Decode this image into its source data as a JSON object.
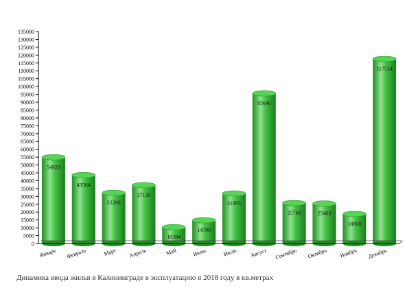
{
  "caption": "Динамика ввода жилья в Калининграде в эксплуатацию в 2018 году в кв.метрах",
  "chart_data": {
    "type": "bar",
    "title": "",
    "xlabel": "",
    "ylabel": "",
    "categories": [
      "Январь",
      "Февраль",
      "Март",
      "Апрель",
      "Май",
      "Июнь",
      "Июль",
      "Август",
      "Сентябрь",
      "Октябрь",
      "Ноябрь",
      "Декабрь"
    ],
    "values": [
      54928,
      43564,
      32260,
      37130,
      10394,
      14799,
      31893,
      95640,
      25768,
      25463,
      18808,
      117514
    ],
    "data_labels": [
      "54928",
      "43564",
      "32260",
      "37130",
      "10394",
      "14799",
      "31893",
      "95640",
      "25768",
      "25463",
      "18808",
      "117514"
    ],
    "ylim": [
      0,
      135000
    ],
    "ytick_step": 5000,
    "grid": false,
    "legend": "none",
    "bar_style": "cylinder",
    "colors": {
      "bar": "#3cb83c",
      "bar_light": "#8fe28f",
      "bar_dark": "#1f8f1f",
      "bar_top": "#55d455",
      "axis": "#000000"
    }
  }
}
